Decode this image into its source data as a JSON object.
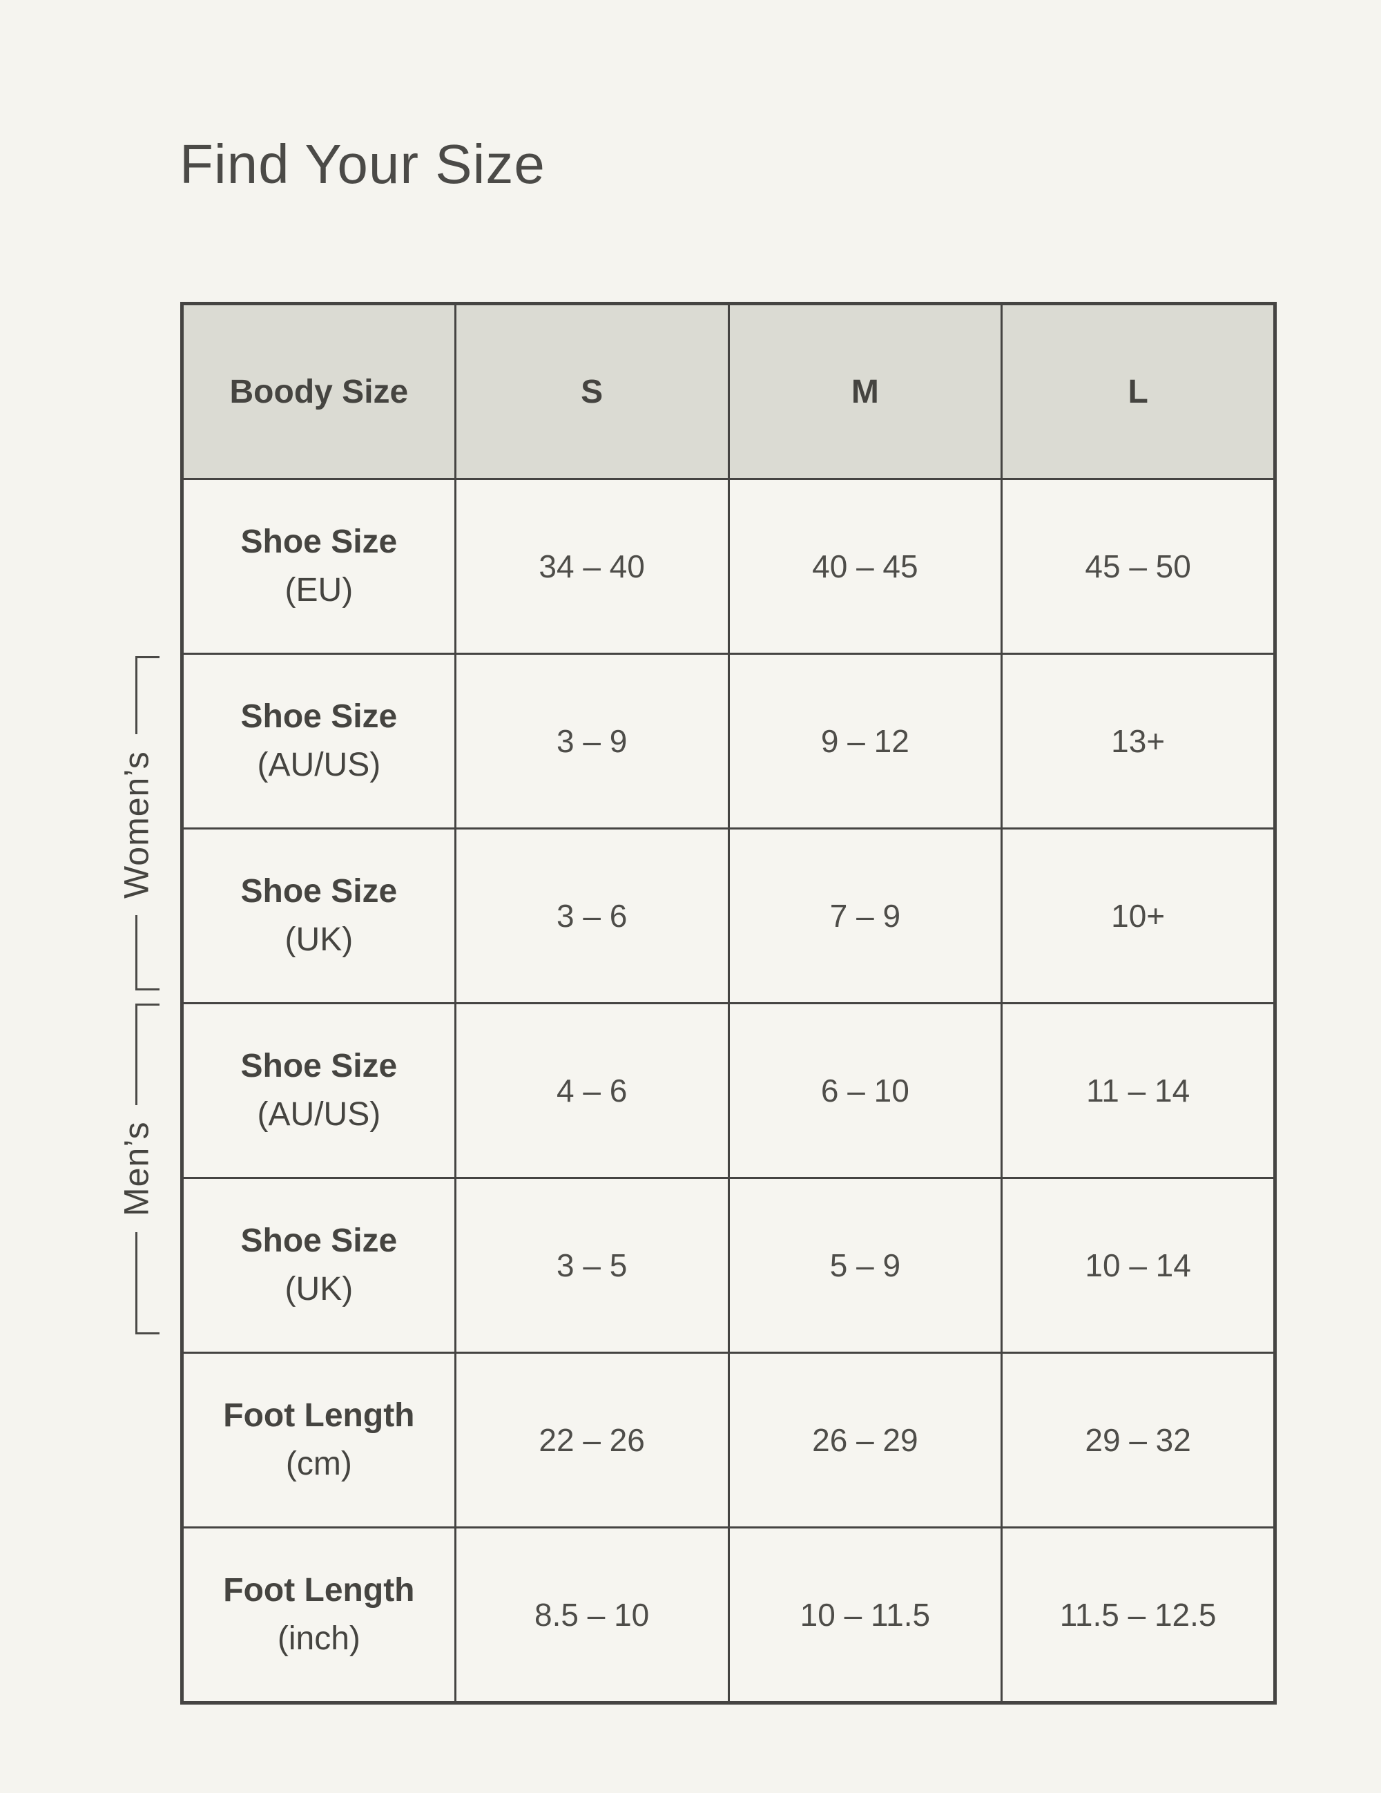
{
  "page": {
    "title": "Find Your Size"
  },
  "colors": {
    "page_background": "#f5f4ef",
    "header_background": "#dbdbd3",
    "cell_background": "#f6f5f0",
    "border": "#454442",
    "text": "#454440",
    "value_text": "#4e4d49"
  },
  "groups": {
    "womens": "Women’s",
    "mens": "Men’s"
  },
  "table": {
    "header": {
      "col0": "Boody Size",
      "col1": "S",
      "col2": "M",
      "col3": "L"
    },
    "rows": [
      {
        "label": "Shoe Size",
        "unit": "(EU)",
        "s": "34 – 40",
        "m": "40 – 45",
        "l": "45 – 50"
      },
      {
        "label": "Shoe Size",
        "unit": "(AU/US)",
        "s": "3 – 9",
        "m": "9 – 12",
        "l": "13+"
      },
      {
        "label": "Shoe Size",
        "unit": "(UK)",
        "s": "3 – 6",
        "m": "7 – 9",
        "l": "10+"
      },
      {
        "label": "Shoe Size",
        "unit": "(AU/US)",
        "s": "4 – 6",
        "m": "6 – 10",
        "l": "11 – 14"
      },
      {
        "label": "Shoe Size",
        "unit": "(UK)",
        "s": "3 – 5",
        "m": "5 – 9",
        "l": "10 – 14"
      },
      {
        "label": "Foot Length",
        "unit": "(cm)",
        "s": "22 – 26",
        "m": "26 – 29",
        "l": "29 – 32"
      },
      {
        "label": "Foot Length",
        "unit": "(inch)",
        "s": "8.5 – 10",
        "m": "10 – 11.5",
        "l": "11.5 – 12.5"
      }
    ]
  },
  "chart_data": {
    "type": "table",
    "title": "Find Your Size",
    "columns": [
      "Boody Size",
      "S",
      "M",
      "L"
    ],
    "rows": [
      [
        "Shoe Size (EU)",
        "34 – 40",
        "40 – 45",
        "45 – 50"
      ],
      [
        "Shoe Size (AU/US)",
        "3 – 9",
        "9 – 12",
        "13+"
      ],
      [
        "Shoe Size (UK)",
        "3 – 6",
        "7 – 9",
        "10+"
      ],
      [
        "Shoe Size (AU/US)",
        "4 – 6",
        "6 – 10",
        "11 – 14"
      ],
      [
        "Shoe Size (UK)",
        "3 – 5",
        "5 – 9",
        "10 – 14"
      ],
      [
        "Foot Length (cm)",
        "22 – 26",
        "26 – 29",
        "29 – 32"
      ],
      [
        "Foot Length (inch)",
        "8.5 – 10",
        "10 – 11.5",
        "11.5 – 12.5"
      ]
    ],
    "row_groups": [
      {
        "label": "Women’s",
        "row_indexes": [
          1,
          2
        ]
      },
      {
        "label": "Men’s",
        "row_indexes": [
          3,
          4
        ]
      }
    ],
    "layout": {
      "header_fill": "#dbdbd3",
      "grid": true
    }
  }
}
